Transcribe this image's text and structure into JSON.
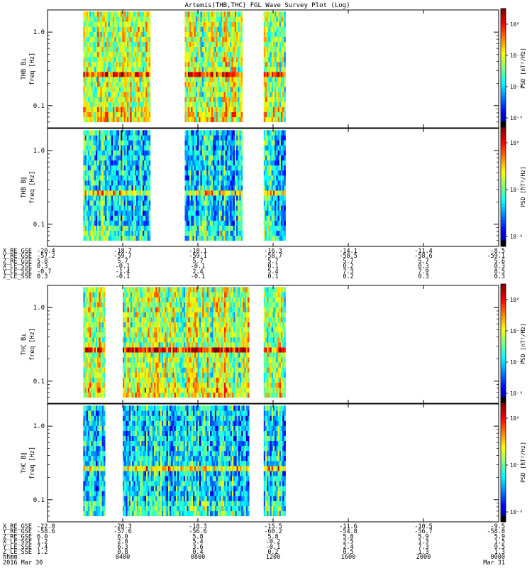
{
  "chart_data": {
    "type": "heatmap",
    "title": "Artemis(THB,THC) FGL Wave Survey Plot (Log)",
    "time_range_hours": [
      0,
      24
    ],
    "panels": [
      {
        "id": "thb-bperp",
        "ylabel_top": "THB B⊥",
        "ylabel_bottom": "freq [Hz]",
        "cbar_label": "PSD [nT²/Hz]",
        "ylim": [
          0.05,
          2.0
        ],
        "yscale": "log",
        "yticks": [
          {
            "value": 1.0,
            "label": "1.0"
          },
          {
            "value": 0.1,
            "label": "0.1"
          }
        ],
        "cbar_ticks": [
          "10⁰",
          "10⁻²",
          "10⁻⁴",
          "10⁻⁶"
        ],
        "data_intervals_hours": [
          [
            1.9,
            5.4
          ],
          [
            7.3,
            10.3
          ],
          [
            11.5,
            12.6
          ]
        ],
        "band_hz": 0.27,
        "intensity": 0.55
      },
      {
        "id": "thb-bpar",
        "ylabel_top": "THB B∥",
        "ylabel_bottom": "freq [Hz]",
        "cbar_label": "PSD [nT²/Hz]",
        "ylim": [
          0.05,
          2.0
        ],
        "yscale": "log",
        "yticks": [
          {
            "value": 1.0,
            "label": "1.0"
          },
          {
            "value": 0.1,
            "label": "0.1"
          }
        ],
        "cbar_ticks": [
          "10⁰",
          "10⁻⁴",
          "10⁻⁸"
        ],
        "data_intervals_hours": [
          [
            1.9,
            5.4
          ],
          [
            7.3,
            10.3
          ],
          [
            11.5,
            12.6
          ]
        ],
        "band_hz": 0.27,
        "intensity": 0.35
      },
      {
        "id": "thc-bperp",
        "ylabel_top": "THC B⊥",
        "ylabel_bottom": "freq [Hz]",
        "cbar_label": "PSD [nT²/Hz]",
        "ylim": [
          0.05,
          2.0
        ],
        "yscale": "log",
        "yticks": [
          {
            "value": 1.0,
            "label": "1.0"
          },
          {
            "value": 0.1,
            "label": "0.1"
          }
        ],
        "cbar_ticks": [
          "10⁰",
          "10⁻²",
          "10⁻⁴",
          "10⁻⁶"
        ],
        "data_intervals_hours": [
          [
            1.9,
            3.0
          ],
          [
            4.0,
            10.7
          ],
          [
            11.5,
            12.6
          ]
        ],
        "band_hz": 0.27,
        "intensity": 0.55
      },
      {
        "id": "thc-bpar",
        "ylabel_top": "THC B∥",
        "ylabel_bottom": "freq [Hz]",
        "cbar_label": "PSD [nT²/Hz]",
        "ylim": [
          0.05,
          2.0
        ],
        "yscale": "log",
        "yticks": [
          {
            "value": 1.0,
            "label": "1.0"
          },
          {
            "value": 0.1,
            "label": "0.1"
          }
        ],
        "cbar_ticks": [
          "10⁰",
          "10⁻⁴",
          "10⁻⁸"
        ],
        "data_intervals_hours": [
          [
            1.9,
            3.0
          ],
          [
            4.0,
            10.7
          ],
          [
            11.5,
            12.6
          ]
        ],
        "band_hz": 0.27,
        "intensity": 0.35
      }
    ],
    "ephemeris_thb": {
      "labels": [
        "X_RE_GSE",
        "Y_RE_GSE",
        "Z_RE_GSE",
        "X_LE_SSE",
        "Y_LE_SSE",
        "Z_LE_SSE"
      ],
      "tick_hours": [
        0,
        4,
        8,
        12,
        16,
        20,
        24
      ],
      "rows": [
        [
          "-20.4",
          "-18.7",
          "-18.1",
          "-16.3",
          "-14.1",
          "-11.4",
          "-8.5"
        ],
        [
          "-57.2",
          "-59.7",
          "-59.1",
          "-58.7",
          "-58.5",
          "-58.6",
          "-59.1"
        ],
        [
          "5.8",
          "5.7",
          "5.7",
          "5.7",
          "5.7",
          "5.7",
          "5.6"
        ],
        [
          "0.3",
          "-0.1",
          "-0.1",
          "0.1",
          "0.2",
          "0.3",
          "0.3"
        ],
        [
          "-0.7",
          "-1.4",
          "2.4",
          "5.4",
          "7.3",
          "7.9",
          "8.5"
        ],
        [
          "0.3",
          "-0.1",
          "-0.1",
          "0.1",
          "0.2",
          "0.3",
          "0.3"
        ]
      ]
    },
    "ephemeris_thc": {
      "labels": [
        "X_RE_GSE",
        "Y_RE_GSE",
        "Z_RE_GSE",
        "X_LE_SSE",
        "Y_LE_SSE",
        "Z_LE_SSE"
      ],
      "tick_hours": [
        0,
        4,
        8,
        12,
        16,
        20,
        24
      ],
      "rows": [
        [
          "-22.0",
          "-20.3",
          "-18.3",
          "-15.5",
          "-11.6",
          "-10.5",
          "-9.5"
        ],
        [
          "-58.6",
          "-57.6",
          "-56.6",
          "-60.2",
          "-54.8",
          "-56.7",
          "-58.8"
        ],
        [
          "6.0",
          "6.0",
          "5.8",
          "5.8",
          "5.8",
          "5.9",
          "5.9"
        ],
        [
          "1.2",
          "2.8",
          "5.4",
          "-0.2",
          "2.5",
          "1.3",
          "1.5"
        ],
        [
          "7.4",
          "6.3",
          "3.6",
          "-0.1",
          "2.4",
          "7.3",
          "9.5"
        ],
        [
          "1.2",
          "0.8",
          "0.4",
          "0.2",
          "0.5",
          "1.3",
          "1.3"
        ]
      ]
    },
    "time_axis": {
      "row_labels": [
        "hhmm",
        "2016 Mar 30"
      ],
      "ticks": [
        {
          "hour": 0,
          "label": "0000",
          "date": "Mar 30"
        },
        {
          "hour": 4,
          "label": "0400",
          "date": ""
        },
        {
          "hour": 8,
          "label": "0800",
          "date": ""
        },
        {
          "hour": 12,
          "label": "1200",
          "date": ""
        },
        {
          "hour": 16,
          "label": "1600",
          "date": ""
        },
        {
          "hour": 20,
          "label": "2000",
          "date": ""
        },
        {
          "hour": 24,
          "label": "0000",
          "date": "Mar 31"
        }
      ]
    }
  }
}
